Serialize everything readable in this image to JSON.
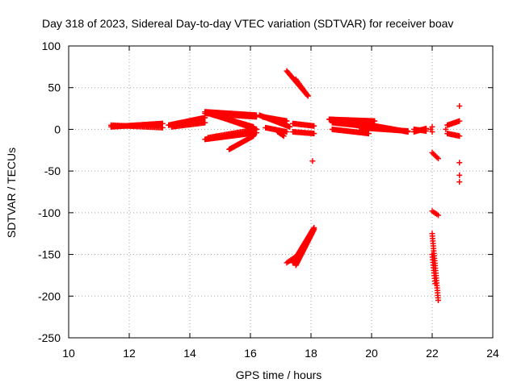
{
  "chart_data": {
    "type": "scatter",
    "title": "Day 318 of 2023, Sidereal Day-to-day VTEC variation (SDTVAR) for receiver boav",
    "xlabel": "GPS time / hours",
    "ylabel": "SDTVAR / TECUs",
    "xlim": [
      10,
      24
    ],
    "ylim": [
      -250,
      100
    ],
    "xticks": [
      10,
      12,
      14,
      16,
      18,
      20,
      22,
      24
    ],
    "yticks": [
      -250,
      -200,
      -150,
      -100,
      -50,
      0,
      50,
      100
    ],
    "grid": true,
    "marker": "+",
    "color": "#ff0000",
    "segments": [
      {
        "x": [
          11.4,
          13.1
        ],
        "y": [
          3,
          7
        ],
        "n": 60
      },
      {
        "x": [
          11.4,
          13.1
        ],
        "y": [
          5,
          2
        ],
        "n": 40
      },
      {
        "x": [
          13.3,
          14.5
        ],
        "y": [
          5,
          14
        ],
        "n": 45
      },
      {
        "x": [
          13.4,
          14.5
        ],
        "y": [
          3,
          8
        ],
        "n": 30
      },
      {
        "x": [
          14.5,
          16.2
        ],
        "y": [
          21,
          17
        ],
        "n": 60
      },
      {
        "x": [
          14.5,
          16.2
        ],
        "y": [
          19,
          15
        ],
        "n": 50
      },
      {
        "x": [
          14.6,
          16.2
        ],
        "y": [
          20,
          0
        ],
        "n": 60
      },
      {
        "x": [
          14.7,
          16.1
        ],
        "y": [
          18,
          3
        ],
        "n": 45
      },
      {
        "x": [
          14.5,
          16.2
        ],
        "y": [
          -12,
          -4
        ],
        "n": 55
      },
      {
        "x": [
          14.6,
          16.2
        ],
        "y": [
          -10,
          0
        ],
        "n": 40
      },
      {
        "x": [
          15.3,
          16.1
        ],
        "y": [
          -24,
          -8
        ],
        "n": 30
      },
      {
        "x": [
          16.4,
          17.2
        ],
        "y": [
          15,
          10
        ],
        "n": 30
      },
      {
        "x": [
          16.3,
          17.3
        ],
        "y": [
          17,
          3
        ],
        "n": 30
      },
      {
        "x": [
          16.5,
          17.2
        ],
        "y": [
          2,
          -3
        ],
        "n": 20
      },
      {
        "x": [
          16.9,
          17.1
        ],
        "y": [
          -3,
          -8
        ],
        "n": 6
      },
      {
        "x": [
          17.4,
          18.1
        ],
        "y": [
          7,
          4
        ],
        "n": 20
      },
      {
        "x": [
          17.4,
          18.1
        ],
        "y": [
          -3,
          -5
        ],
        "n": 20
      },
      {
        "x": [
          17.2,
          17.9
        ],
        "y": [
          70,
          40
        ],
        "n": 25
      },
      {
        "x": [
          17.5,
          17.9
        ],
        "y": [
          60,
          40
        ],
        "n": 12
      },
      {
        "x": [
          17.2,
          17.6
        ],
        "y": [
          -160,
          -150
        ],
        "n": 10
      },
      {
        "x": [
          17.4,
          18.1
        ],
        "y": [
          -160,
          -118
        ],
        "n": 40
      },
      {
        "x": [
          17.5,
          18.1
        ],
        "y": [
          -163,
          -120
        ],
        "n": 35
      },
      {
        "x": [
          18.6,
          20.1
        ],
        "y": [
          12,
          10
        ],
        "n": 50
      },
      {
        "x": [
          18.7,
          20.0
        ],
        "y": [
          8,
          3
        ],
        "n": 40
      },
      {
        "x": [
          18.7,
          19.9
        ],
        "y": [
          0,
          -5
        ],
        "n": 35
      },
      {
        "x": [
          19.5,
          21.2
        ],
        "y": [
          8,
          -3
        ],
        "n": 60
      },
      {
        "x": [
          19.6,
          21.2
        ],
        "y": [
          2,
          -2
        ],
        "n": 50
      },
      {
        "x": [
          21.4,
          21.8
        ],
        "y": [
          0,
          -2
        ],
        "n": 12
      },
      {
        "x": [
          21.4,
          21.8
        ],
        "y": [
          -3,
          1
        ],
        "n": 12
      },
      {
        "x": [
          22.5,
          22.9
        ],
        "y": [
          5,
          10
        ],
        "n": 12
      },
      {
        "x": [
          22.5,
          22.9
        ],
        "y": [
          -5,
          -8
        ],
        "n": 12
      },
      {
        "x": [
          22.0,
          22.2
        ],
        "y": [
          -28,
          -35
        ],
        "n": 6
      },
      {
        "x": [
          22.0,
          22.2
        ],
        "y": [
          -98,
          -103
        ],
        "n": 5
      },
      {
        "x": [
          22.0,
          22.2
        ],
        "y": [
          -125,
          -205
        ],
        "n": 28
      },
      {
        "x": [
          22.0,
          22.1
        ],
        "y": [
          -150,
          -185
        ],
        "n": 12
      }
    ],
    "points": [
      {
        "x": 18.05,
        "y": -38
      },
      {
        "x": 22.9,
        "y": 28
      },
      {
        "x": 22.9,
        "y": -40
      },
      {
        "x": 22.9,
        "y": -55
      },
      {
        "x": 22.9,
        "y": -63
      },
      {
        "x": 22.0,
        "y": 3
      },
      {
        "x": 22.0,
        "y": -3
      },
      {
        "x": 22.45,
        "y": 0
      },
      {
        "x": 21.95,
        "y": 0
      }
    ]
  }
}
